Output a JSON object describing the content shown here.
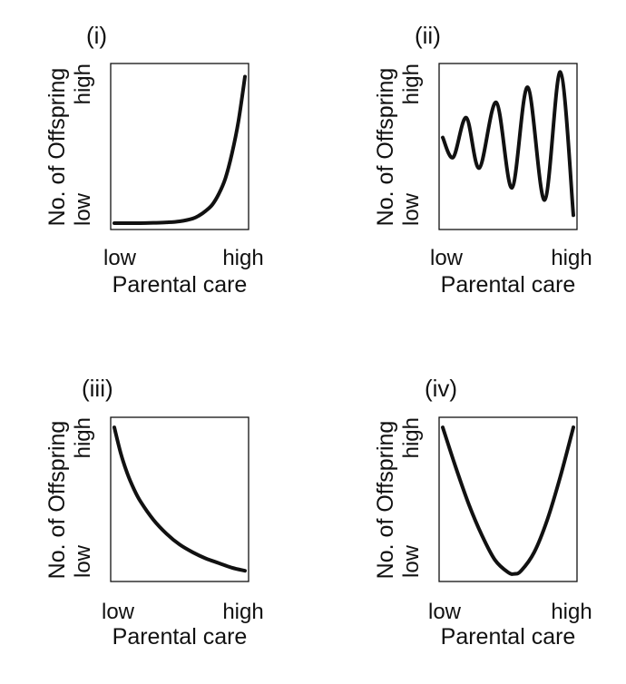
{
  "chart_data": [
    {
      "type": "line",
      "panel": "(i)",
      "xlabel": "Parental care",
      "ylabel": "No. of Offspring",
      "x_ticks": [
        "low",
        "high"
      ],
      "y_ticks": [
        "low",
        "high"
      ],
      "xlim": [
        0,
        1
      ],
      "ylim": [
        0,
        1
      ],
      "x": [
        0.0,
        0.1,
        0.2,
        0.3,
        0.4,
        0.5,
        0.6,
        0.65,
        0.7,
        0.75,
        0.8,
        0.85,
        0.9,
        0.95,
        1.0
      ],
      "y": [
        0.0,
        0.0,
        0.0,
        0.002,
        0.005,
        0.012,
        0.03,
        0.05,
        0.08,
        0.12,
        0.19,
        0.29,
        0.45,
        0.66,
        0.95
      ]
    },
    {
      "type": "line",
      "panel": "(ii)",
      "xlabel": "Parental care",
      "ylabel": "No. of Offspring",
      "x_ticks": [
        "low",
        "high"
      ],
      "y_ticks": [
        "low",
        "high"
      ],
      "xlim": [
        0,
        1
      ],
      "ylim": [
        0,
        1
      ],
      "x": [
        0.0,
        0.08,
        0.18,
        0.28,
        0.41,
        0.53,
        0.65,
        0.78,
        0.9,
        1.0
      ],
      "y": [
        0.55,
        0.42,
        0.68,
        0.35,
        0.78,
        0.22,
        0.88,
        0.14,
        0.98,
        0.04
      ]
    },
    {
      "type": "line",
      "panel": "(iii)",
      "xlabel": "Parental care",
      "ylabel": "No. of Offspring",
      "x_ticks": [
        "low",
        "high"
      ],
      "y_ticks": [
        "low",
        "high"
      ],
      "xlim": [
        0,
        1
      ],
      "ylim": [
        0,
        1
      ],
      "x": [
        0.0,
        0.05,
        0.1,
        0.15,
        0.2,
        0.3,
        0.4,
        0.5,
        0.6,
        0.7,
        0.8,
        0.9,
        1.0
      ],
      "y": [
        0.97,
        0.8,
        0.67,
        0.57,
        0.49,
        0.37,
        0.28,
        0.21,
        0.16,
        0.12,
        0.09,
        0.06,
        0.04
      ]
    },
    {
      "type": "line",
      "panel": "(iv)",
      "xlabel": "Parental care",
      "ylabel": "No. of Offspring",
      "x_ticks": [
        "low",
        "high"
      ],
      "y_ticks": [
        "low",
        "high"
      ],
      "xlim": [
        0,
        1
      ],
      "ylim": [
        0,
        1
      ],
      "x": [
        0.0,
        0.1,
        0.2,
        0.3,
        0.4,
        0.5,
        0.55,
        0.6,
        0.7,
        0.8,
        0.9,
        1.0
      ],
      "y": [
        0.97,
        0.71,
        0.47,
        0.27,
        0.11,
        0.03,
        0.02,
        0.04,
        0.16,
        0.37,
        0.65,
        0.97
      ]
    }
  ]
}
